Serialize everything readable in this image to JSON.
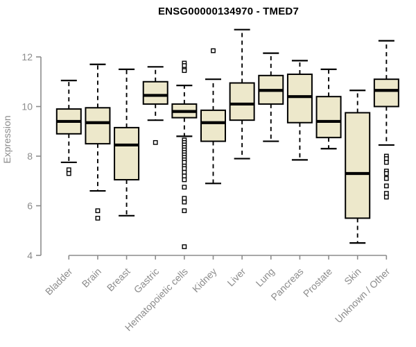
{
  "chart_data": {
    "type": "boxplot",
    "title": "ENSG00000134970 - TMED7",
    "ylabel": "Expression",
    "xlabel": "",
    "ylim": [
      4,
      13.2
    ],
    "yticks": [
      4,
      6,
      8,
      10,
      12
    ],
    "grid": false,
    "legend": false,
    "box_fill_color": "#EDE8CB",
    "box_line_color": "#000000",
    "axis_color": "#8C8C8C",
    "categories": [
      "Bladder",
      "Brain",
      "Breast",
      "Gastric",
      "Hematopoietic cells",
      "Kidney",
      "Liver",
      "Lung",
      "Pancreas",
      "Prostate",
      "Skin",
      "Unknown / Other"
    ],
    "series": [
      {
        "name": "Bladder",
        "whisker_low": 7.75,
        "q1": 8.9,
        "median": 9.4,
        "q3": 9.9,
        "whisker_high": 11.05,
        "outliers": [
          7.45,
          7.3
        ]
      },
      {
        "name": "Brain",
        "whisker_low": 6.6,
        "q1": 8.5,
        "median": 9.35,
        "q3": 9.95,
        "whisker_high": 11.7,
        "outliers": [
          5.8,
          5.5
        ]
      },
      {
        "name": "Breast",
        "whisker_low": 5.6,
        "q1": 7.05,
        "median": 8.45,
        "q3": 9.15,
        "whisker_high": 11.5,
        "outliers": []
      },
      {
        "name": "Gastric",
        "whisker_low": 9.45,
        "q1": 10.1,
        "median": 10.45,
        "q3": 11.0,
        "whisker_high": 11.6,
        "outliers": [
          8.55
        ]
      },
      {
        "name": "Hematopoietic cells",
        "whisker_low": 8.8,
        "q1": 9.55,
        "median": 9.8,
        "q3": 10.1,
        "whisker_high": 10.85,
        "outliers": [
          11.75,
          11.65,
          11.5,
          11.45,
          8.65,
          8.55,
          8.45,
          8.35,
          8.25,
          8.15,
          8.05,
          7.95,
          7.85,
          7.75,
          7.6,
          7.5,
          7.35,
          7.2,
          7.05,
          6.75,
          6.3,
          6.15,
          5.8,
          4.35
        ]
      },
      {
        "name": "Kidney",
        "whisker_low": 6.9,
        "q1": 8.6,
        "median": 9.35,
        "q3": 9.85,
        "whisker_high": 11.1,
        "outliers": [
          12.25
        ]
      },
      {
        "name": "Liver",
        "whisker_low": 7.9,
        "q1": 9.45,
        "median": 10.1,
        "q3": 10.95,
        "whisker_high": 13.1,
        "outliers": []
      },
      {
        "name": "Lung",
        "whisker_low": 8.6,
        "q1": 10.1,
        "median": 10.65,
        "q3": 11.25,
        "whisker_high": 12.15,
        "outliers": []
      },
      {
        "name": "Pancreas",
        "whisker_low": 7.85,
        "q1": 9.35,
        "median": 10.4,
        "q3": 11.3,
        "whisker_high": 11.85,
        "outliers": []
      },
      {
        "name": "Prostate",
        "whisker_low": 8.3,
        "q1": 8.75,
        "median": 9.4,
        "q3": 10.4,
        "whisker_high": 11.5,
        "outliers": []
      },
      {
        "name": "Skin",
        "whisker_low": 4.5,
        "q1": 5.5,
        "median": 7.3,
        "q3": 9.75,
        "whisker_high": 10.65,
        "outliers": []
      },
      {
        "name": "Unknown / Other",
        "whisker_low": 8.45,
        "q1": 10.0,
        "median": 10.65,
        "q3": 11.1,
        "whisker_high": 12.65,
        "outliers": [
          8.0,
          7.9,
          7.75,
          7.4,
          7.3,
          7.1,
          6.8,
          6.5,
          6.35
        ]
      }
    ]
  }
}
